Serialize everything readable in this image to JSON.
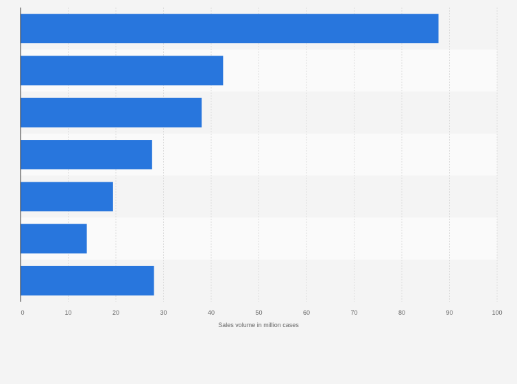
{
  "chart_data": {
    "type": "bar",
    "orientation": "horizontal",
    "categories": [
      "",
      "",
      "",
      "",
      "",
      "",
      ""
    ],
    "values": [
      87.7,
      42.5,
      38,
      27.6,
      19.4,
      13.9,
      28
    ],
    "xlabel": "Sales volume in million cases",
    "ylabel": "",
    "xlim": [
      0,
      100
    ],
    "xticks": [
      "0",
      "10",
      "20",
      "30",
      "40",
      "50",
      "60",
      "70",
      "80",
      "90",
      "100"
    ],
    "grid": "vertical",
    "bar_color": "#2876dd",
    "band_colors": [
      "#f4f4f4",
      "#fafafa"
    ]
  }
}
